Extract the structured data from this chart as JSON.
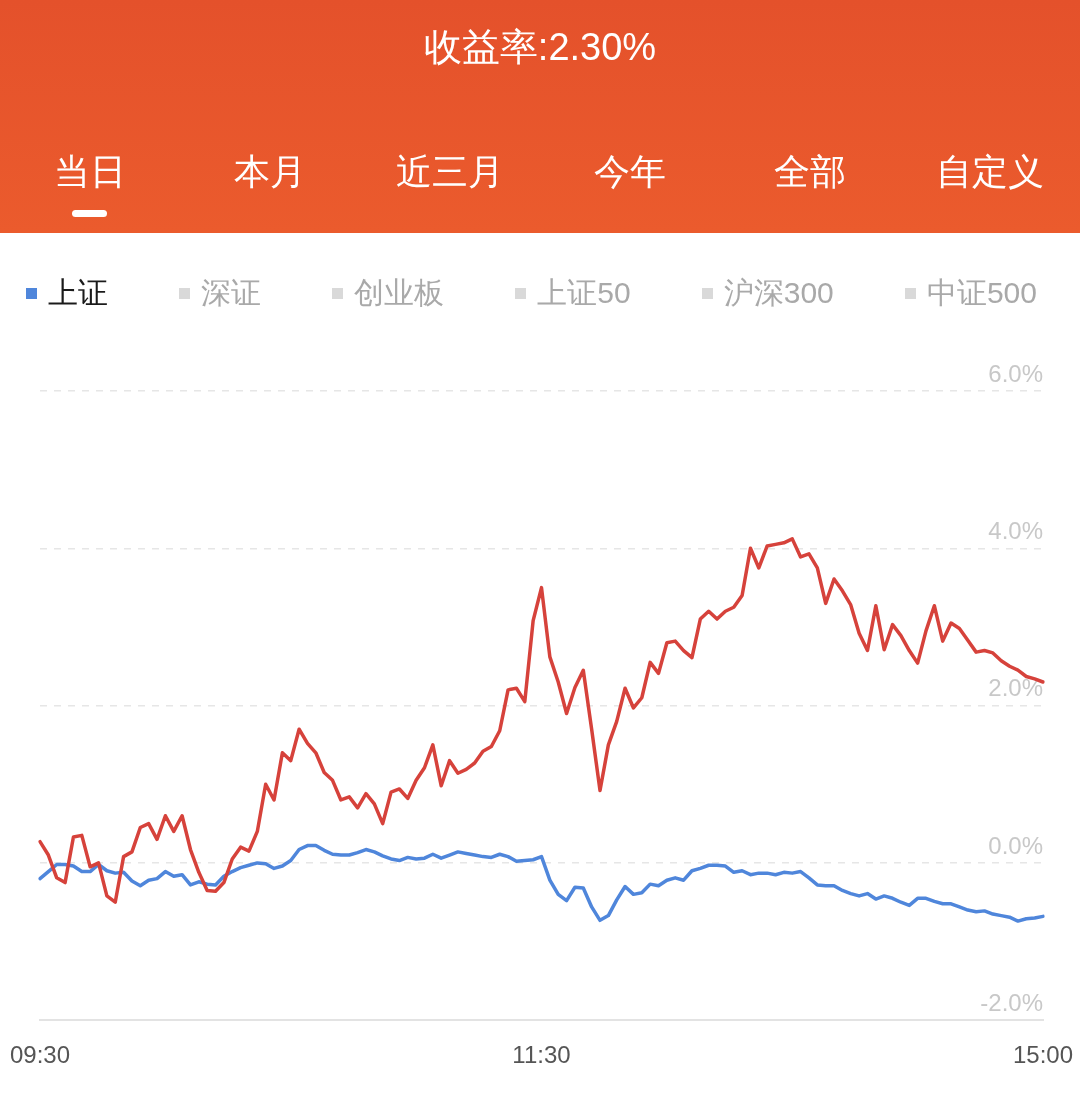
{
  "chart_data": {
    "type": "line",
    "title": "收益率:2.30%",
    "annotations": [
      "当日",
      "本月",
      "近三月",
      "今年",
      "全部",
      "自定义"
    ],
    "categories": [
      "09:30",
      null,
      null,
      null,
      null,
      null,
      null,
      null,
      null,
      null,
      null,
      null,
      null,
      null,
      null,
      null,
      null,
      null,
      null,
      null,
      null,
      null,
      null,
      null,
      null,
      null,
      null,
      null,
      null,
      null,
      null,
      null,
      null,
      null,
      null,
      null,
      null,
      null,
      null,
      null,
      null,
      null,
      null,
      null,
      null,
      null,
      null,
      null,
      null,
      null,
      null,
      null,
      null,
      null,
      null,
      null,
      null,
      null,
      null,
      null,
      "11:30",
      null,
      null,
      null,
      null,
      null,
      null,
      null,
      null,
      null,
      null,
      null,
      null,
      null,
      null,
      null,
      null,
      null,
      null,
      null,
      null,
      null,
      null,
      null,
      null,
      null,
      null,
      null,
      null,
      null,
      null,
      null,
      null,
      null,
      null,
      null,
      null,
      null,
      null,
      null,
      null,
      null,
      null,
      null,
      null,
      null,
      null,
      null,
      null,
      null,
      null,
      null,
      null,
      null,
      null,
      null,
      null,
      null,
      null,
      null,
      "15:00"
    ],
    "series": [
      {
        "color": "#d6423b",
        "values": [
          0.27,
          0.1,
          -0.19,
          -0.25,
          0.33,
          0.35,
          -0.05,
          0.0,
          -0.42,
          -0.5,
          0.08,
          0.14,
          0.45,
          0.5,
          0.3,
          0.6,
          0.4,
          0.6,
          0.17,
          -0.12,
          -0.35,
          -0.36,
          -0.25,
          0.05,
          0.2,
          0.15,
          0.4,
          1.0,
          0.8,
          1.4,
          1.3,
          1.7,
          1.52,
          1.4,
          1.15,
          1.05,
          0.8,
          0.84,
          0.7,
          0.88,
          0.75,
          0.5,
          0.9,
          0.94,
          0.82,
          1.05,
          1.21,
          1.5,
          0.98,
          1.3,
          1.14,
          1.19,
          1.27,
          1.42,
          1.48,
          1.68,
          2.2,
          2.22,
          2.05,
          3.08,
          3.5,
          2.62,
          2.3,
          1.9,
          2.23,
          2.45,
          1.7,
          0.92,
          1.5,
          1.8,
          2.22,
          1.97,
          2.1,
          2.55,
          2.41,
          2.8,
          2.82,
          2.7,
          2.61,
          3.1,
          3.2,
          3.1,
          3.2,
          3.25,
          3.4,
          4.0,
          3.75,
          4.03,
          4.05,
          4.07,
          4.12,
          3.89,
          3.93,
          3.75,
          3.3,
          3.61,
          3.46,
          3.28,
          2.92,
          2.7,
          3.27,
          2.71,
          3.03,
          2.89,
          2.7,
          2.54,
          2.95,
          3.27,
          2.82,
          3.05,
          2.98,
          2.83,
          2.68,
          2.7,
          2.67,
          2.57,
          2.5,
          2.45,
          2.37,
          2.34,
          2.3
        ]
      },
      {
        "name": "上证",
        "color": "#4f86db",
        "values": [
          -0.2,
          -0.11,
          -0.02,
          -0.02,
          -0.04,
          -0.11,
          -0.11,
          -0.02,
          -0.1,
          -0.13,
          -0.12,
          -0.23,
          -0.29,
          -0.22,
          -0.2,
          -0.11,
          -0.17,
          -0.15,
          -0.28,
          -0.24,
          -0.27,
          -0.28,
          -0.17,
          -0.11,
          -0.06,
          -0.03,
          0.0,
          -0.01,
          -0.07,
          -0.04,
          0.03,
          0.17,
          0.22,
          0.22,
          0.16,
          0.11,
          0.1,
          0.1,
          0.13,
          0.17,
          0.14,
          0.09,
          0.05,
          0.03,
          0.07,
          0.05,
          0.06,
          0.11,
          0.06,
          0.1,
          0.14,
          0.12,
          0.1,
          0.08,
          0.07,
          0.11,
          0.08,
          0.02,
          0.03,
          0.04,
          0.08,
          -0.22,
          -0.4,
          -0.48,
          -0.31,
          -0.32,
          -0.56,
          -0.73,
          -0.67,
          -0.47,
          -0.3,
          -0.4,
          -0.38,
          -0.27,
          -0.29,
          -0.22,
          -0.19,
          -0.22,
          -0.1,
          -0.07,
          -0.03,
          -0.03,
          -0.04,
          -0.12,
          -0.1,
          -0.15,
          -0.13,
          -0.13,
          -0.15,
          -0.12,
          -0.13,
          -0.11,
          -0.19,
          -0.28,
          -0.29,
          -0.29,
          -0.35,
          -0.39,
          -0.42,
          -0.39,
          -0.46,
          -0.42,
          -0.45,
          -0.5,
          -0.54,
          -0.45,
          -0.45,
          -0.49,
          -0.52,
          -0.52,
          -0.56,
          -0.6,
          -0.62,
          -0.61,
          -0.65,
          -0.67,
          -0.69,
          -0.74,
          -0.71,
          -0.7,
          -0.68
        ]
      },
      {
        "name": "深证",
        "color": "#d9d9d9",
        "values": [
          null,
          null,
          null,
          null,
          null,
          null,
          null,
          null,
          null,
          null,
          null,
          null,
          null,
          null,
          null,
          null,
          null,
          null,
          null,
          null,
          null,
          null,
          null,
          null,
          null,
          null,
          null,
          null,
          null,
          null,
          null,
          null,
          null,
          null,
          null,
          null,
          null,
          null,
          null,
          null,
          null,
          null,
          null,
          null,
          null,
          null,
          null,
          null,
          null,
          null,
          null,
          null,
          null,
          null,
          null,
          null,
          null,
          null,
          null,
          null,
          null,
          null,
          null,
          null,
          null,
          null,
          null,
          null,
          null,
          null,
          null,
          null,
          null,
          null,
          null,
          null,
          null,
          null,
          null,
          null,
          null,
          null,
          null,
          null,
          null,
          null,
          null,
          null,
          null,
          null,
          null,
          null,
          null,
          null,
          null,
          null,
          null,
          null,
          null,
          null,
          null,
          null,
          null,
          null,
          null,
          null,
          null,
          null,
          null,
          null,
          null,
          null,
          null,
          null,
          null,
          null,
          null,
          null,
          null,
          null,
          null
        ]
      },
      {
        "name": "创业板",
        "color": "#d9d9d9",
        "values": [
          null,
          null,
          null,
          null,
          null,
          null,
          null,
          null,
          null,
          null,
          null,
          null,
          null,
          null,
          null,
          null,
          null,
          null,
          null,
          null,
          null,
          null,
          null,
          null,
          null,
          null,
          null,
          null,
          null,
          null,
          null,
          null,
          null,
          null,
          null,
          null,
          null,
          null,
          null,
          null,
          null,
          null,
          null,
          null,
          null,
          null,
          null,
          null,
          null,
          null,
          null,
          null,
          null,
          null,
          null,
          null,
          null,
          null,
          null,
          null,
          null,
          null,
          null,
          null,
          null,
          null,
          null,
          null,
          null,
          null,
          null,
          null,
          null,
          null,
          null,
          null,
          null,
          null,
          null,
          null,
          null,
          null,
          null,
          null,
          null,
          null,
          null,
          null,
          null,
          null,
          null,
          null,
          null,
          null,
          null,
          null,
          null,
          null,
          null,
          null,
          null,
          null,
          null,
          null,
          null,
          null,
          null,
          null,
          null,
          null,
          null,
          null,
          null,
          null,
          null,
          null,
          null,
          null,
          null,
          null,
          null
        ]
      },
      {
        "name": "上证50",
        "color": "#d9d9d9",
        "values": [
          null,
          null,
          null,
          null,
          null,
          null,
          null,
          null,
          null,
          null,
          null,
          null,
          null,
          null,
          null,
          null,
          null,
          null,
          null,
          null,
          null,
          null,
          null,
          null,
          null,
          null,
          null,
          null,
          null,
          null,
          null,
          null,
          null,
          null,
          null,
          null,
          null,
          null,
          null,
          null,
          null,
          null,
          null,
          null,
          null,
          null,
          null,
          null,
          null,
          null,
          null,
          null,
          null,
          null,
          null,
          null,
          null,
          null,
          null,
          null,
          null,
          null,
          null,
          null,
          null,
          null,
          null,
          null,
          null,
          null,
          null,
          null,
          null,
          null,
          null,
          null,
          null,
          null,
          null,
          null,
          null,
          null,
          null,
          null,
          null,
          null,
          null,
          null,
          null,
          null,
          null,
          null,
          null,
          null,
          null,
          null,
          null,
          null,
          null,
          null,
          null,
          null,
          null,
          null,
          null,
          null,
          null,
          null,
          null,
          null,
          null,
          null,
          null,
          null,
          null,
          null,
          null,
          null,
          null,
          null,
          null
        ]
      },
      {
        "name": "沪深300",
        "color": "#d9d9d9",
        "values": [
          null,
          null,
          null,
          null,
          null,
          null,
          null,
          null,
          null,
          null,
          null,
          null,
          null,
          null,
          null,
          null,
          null,
          null,
          null,
          null,
          null,
          null,
          null,
          null,
          null,
          null,
          null,
          null,
          null,
          null,
          null,
          null,
          null,
          null,
          null,
          null,
          null,
          null,
          null,
          null,
          null,
          null,
          null,
          null,
          null,
          null,
          null,
          null,
          null,
          null,
          null,
          null,
          null,
          null,
          null,
          null,
          null,
          null,
          null,
          null,
          null,
          null,
          null,
          null,
          null,
          null,
          null,
          null,
          null,
          null,
          null,
          null,
          null,
          null,
          null,
          null,
          null,
          null,
          null,
          null,
          null,
          null,
          null,
          null,
          null,
          null,
          null,
          null,
          null,
          null,
          null,
          null,
          null,
          null,
          null,
          null,
          null,
          null,
          null,
          null,
          null,
          null,
          null,
          null,
          null,
          null,
          null,
          null,
          null,
          null,
          null,
          null,
          null,
          null,
          null,
          null,
          null,
          null,
          null,
          null,
          null
        ]
      },
      {
        "name": "中证500",
        "color": "#d9d9d9",
        "values": [
          null,
          null,
          null,
          null,
          null,
          null,
          null,
          null,
          null,
          null,
          null,
          null,
          null,
          null,
          null,
          null,
          null,
          null,
          null,
          null,
          null,
          null,
          null,
          null,
          null,
          null,
          null,
          null,
          null,
          null,
          null,
          null,
          null,
          null,
          null,
          null,
          null,
          null,
          null,
          null,
          null,
          null,
          null,
          null,
          null,
          null,
          null,
          null,
          null,
          null,
          null,
          null,
          null,
          null,
          null,
          null,
          null,
          null,
          null,
          null,
          null,
          null,
          null,
          null,
          null,
          null,
          null,
          null,
          null,
          null,
          null,
          null,
          null,
          null,
          null,
          null,
          null,
          null,
          null,
          null,
          null,
          null,
          null,
          null,
          null,
          null,
          null,
          null,
          null,
          null,
          null,
          null,
          null,
          null,
          null,
          null,
          null,
          null,
          null,
          null,
          null,
          null,
          null,
          null,
          null,
          null,
          null,
          null,
          null,
          null,
          null,
          null,
          null,
          null,
          null,
          null,
          null,
          null,
          null,
          null,
          null
        ]
      }
    ],
    "ylim": [
      -2,
      6
    ],
    "yticks": [
      {
        "value": -2,
        "label": "-2.0%"
      },
      {
        "value": 0,
        "label": "0.0%"
      },
      {
        "value": 2,
        "label": "2.0%"
      },
      {
        "value": 4,
        "label": "4.0%"
      },
      {
        "value": 6,
        "label": "6.0%"
      }
    ],
    "grid": "y",
    "legend": "top"
  }
}
